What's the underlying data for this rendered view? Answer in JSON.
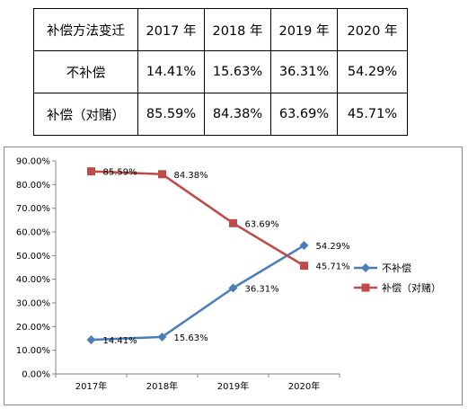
{
  "table": {
    "header": [
      "补偿方法变迁",
      "2017 年",
      "2018 年",
      "2019 年",
      "2020 年"
    ],
    "rows": [
      [
        "不补偿",
        "14.41%",
        "15.63%",
        "36.31%",
        "54.29%"
      ],
      [
        "补偿（对赌）",
        "85.59%",
        "84.38%",
        "63.69%",
        "45.71%"
      ]
    ]
  },
  "chart_data": {
    "type": "line",
    "categories": [
      "2017年",
      "2018年",
      "2019年",
      "2020年"
    ],
    "ylim": [
      0,
      90
    ],
    "yticks": [
      "0.00%",
      "10.00%",
      "20.00%",
      "30.00%",
      "40.00%",
      "50.00%",
      "60.00%",
      "70.00%",
      "80.00%",
      "90.00%"
    ],
    "grid": false,
    "legend_position": "right",
    "series": [
      {
        "name": "不补偿",
        "values": [
          14.41,
          15.63,
          36.31,
          54.29
        ],
        "labels": [
          "14.41%",
          "15.63%",
          "36.31%",
          "54.29%"
        ],
        "color": "#4a7ebb",
        "marker": "diamond"
      },
      {
        "name": "补偿（对赌）",
        "values": [
          85.59,
          84.38,
          63.69,
          45.71
        ],
        "labels": [
          "85.59%",
          "84.38%",
          "63.69%",
          "45.71%"
        ],
        "color": "#be4b48",
        "marker": "square"
      }
    ]
  }
}
